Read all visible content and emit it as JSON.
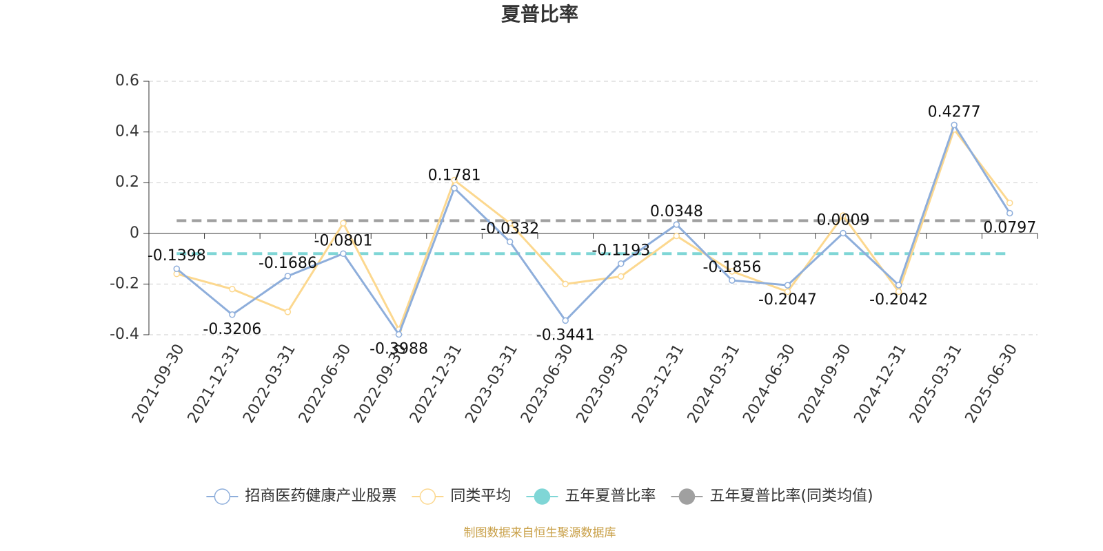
{
  "chart_data": {
    "type": "line",
    "title": "夏普比率",
    "source": "制图数据来自恒生聚源数据库",
    "categories": [
      "2021-09-30",
      "2021-12-31",
      "2022-03-31",
      "2022-06-30",
      "2022-09-30",
      "2022-12-31",
      "2023-03-31",
      "2023-06-30",
      "2023-09-30",
      "2023-12-31",
      "2024-03-31",
      "2024-06-30",
      "2024-09-30",
      "2024-12-31",
      "2025-03-31",
      "2025-06-30"
    ],
    "series": [
      {
        "name": "招商医药健康产业股票",
        "color": "#8eaedb",
        "values": [
          -0.1398,
          -0.3206,
          -0.1686,
          -0.0801,
          -0.3988,
          0.1781,
          -0.0332,
          -0.3441,
          -0.1193,
          0.0348,
          -0.1856,
          -0.2047,
          0.0009,
          -0.2042,
          0.4277,
          0.0797
        ],
        "data_labels": true
      },
      {
        "name": "同类平均",
        "color": "#fcd88f",
        "values": [
          -0.16,
          -0.22,
          -0.31,
          0.04,
          -0.38,
          0.21,
          0.04,
          -0.2,
          -0.17,
          -0.01,
          -0.15,
          -0.23,
          0.07,
          -0.23,
          0.41,
          0.12
        ]
      },
      {
        "name": "五年夏普比率",
        "color": "#7fd6d6",
        "value": -0.08
      },
      {
        "name": "五年夏普比率(同类均值)",
        "color": "#a0a0a0",
        "value": 0.05
      }
    ],
    "ylim": [
      -0.4,
      0.6
    ],
    "yticks": [
      -0.4,
      -0.2,
      0,
      0.2,
      0.4,
      0.6
    ],
    "grid": true
  }
}
